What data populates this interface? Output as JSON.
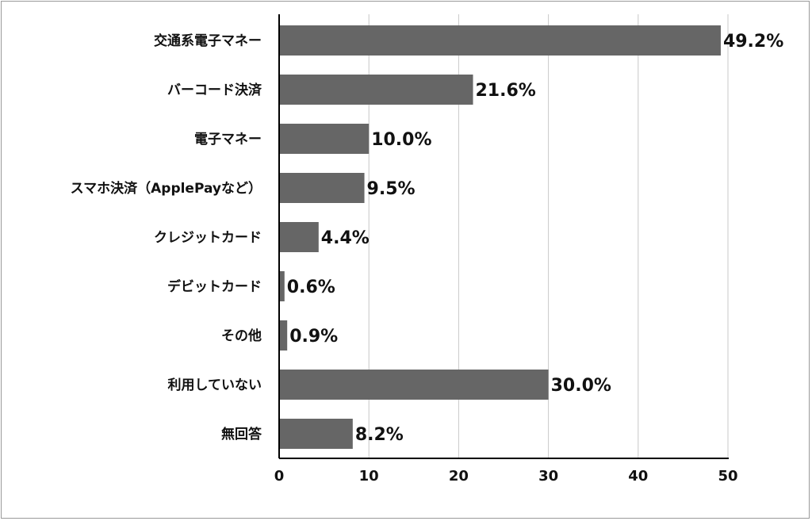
{
  "chart_data": {
    "type": "bar",
    "orientation": "horizontal",
    "categories": [
      "交通系電子マネー",
      "バーコード決済",
      "電子マネー",
      "スマホ決済（ApplePayなど）",
      "クレジットカード",
      "デビットカード",
      "その他",
      "利用していない",
      "無回答"
    ],
    "values": [
      49.2,
      21.6,
      10.0,
      9.5,
      4.4,
      0.6,
      0.9,
      30.0,
      8.2
    ],
    "value_labels": [
      "49.2%",
      "21.6%",
      "10.0%",
      "9.5%",
      "4.4%",
      "0.6%",
      "0.9%",
      "30.0%",
      "8.2%"
    ],
    "xlim": [
      0,
      50
    ],
    "xticks": [
      "0",
      "10",
      "20",
      "30",
      "40",
      "50"
    ],
    "title": "",
    "xlabel": "",
    "ylabel": "",
    "grid": "vertical",
    "legend": "none",
    "colors": {
      "bar": "#666666",
      "grid": "#c8c8c8",
      "axis": "#000000",
      "text": "#111111"
    }
  }
}
